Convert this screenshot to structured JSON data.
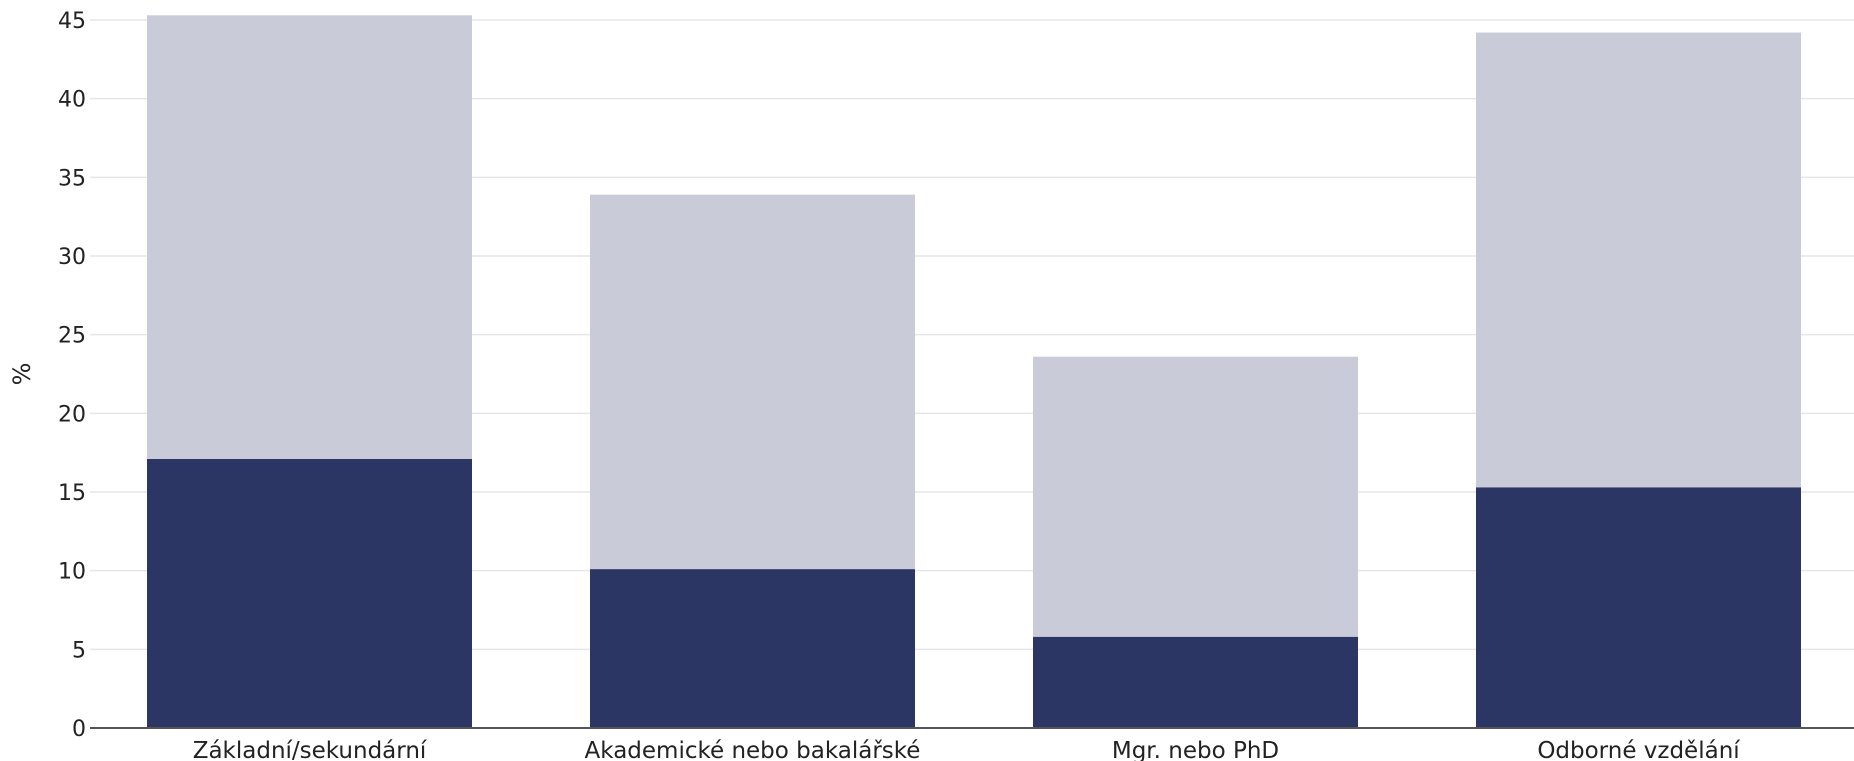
{
  "chart_data": {
    "type": "bar",
    "stacked": true,
    "categories": [
      "Základní/sekundární",
      "Akademické nebo bakalářské",
      "Mgr. nebo PhD",
      "Odborné vzdělání"
    ],
    "series": [
      {
        "values": [
          17.1,
          10.1,
          5.8,
          15.3
        ],
        "color": "#2b3664"
      },
      {
        "values": [
          28.2,
          23.8,
          17.8,
          28.9
        ],
        "color": "#c9cbd8"
      }
    ],
    "ylabel": "%",
    "ylim": [
      0,
      45
    ],
    "yticks": [
      0,
      5,
      10,
      15,
      20,
      25,
      30,
      35,
      40,
      45
    ],
    "grid": true,
    "legend": "none",
    "colors": {
      "grid": "#e6e6e9",
      "axis": "#555555",
      "text": "#222222"
    }
  }
}
